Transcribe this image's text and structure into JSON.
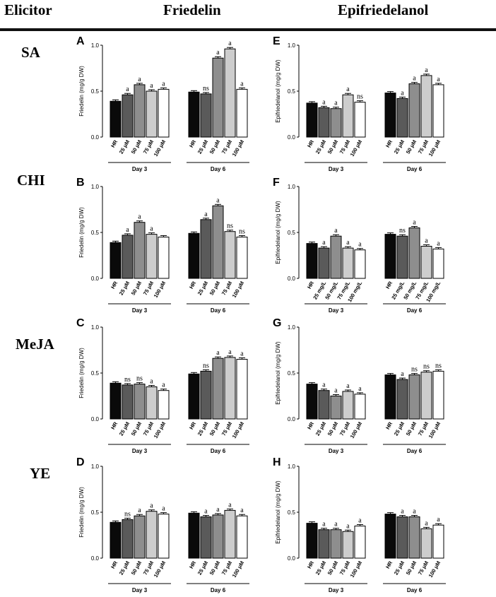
{
  "headers": {
    "elicitor": "Elicitor",
    "friedelin": "Friedelin",
    "epifriedelanol": "Epifriedelanol"
  },
  "row_labels": [
    "SA",
    "CHI",
    "MeJA",
    "YE"
  ],
  "colors": {
    "bars": [
      "#0a0a0a",
      "#5a5a5a",
      "#8e8e8e",
      "#cdcdcd",
      "#ffffff"
    ],
    "axis": "#000000"
  },
  "chart_data": [
    {
      "id": "A",
      "type": "bar",
      "ylabel": "Friedelin (mg/g DW)",
      "ylim": [
        0,
        1.0
      ],
      "yticks": [
        "0.0",
        "0.5",
        "1.0"
      ],
      "categories": [
        "HR",
        "25 μM",
        "50 μM",
        "75 μM",
        "100 μM"
      ],
      "groups": [
        "Day 3",
        "Day 6"
      ],
      "series": [
        {
          "name": "Day 3",
          "values": [
            0.39,
            0.46,
            0.57,
            0.5,
            0.52
          ],
          "labels": [
            "",
            "a",
            "a",
            "a",
            "a"
          ]
        },
        {
          "name": "Day 6",
          "values": [
            0.49,
            0.47,
            0.86,
            0.96,
            0.52
          ],
          "labels": [
            "",
            "ns",
            "a",
            "a",
            "a"
          ]
        }
      ]
    },
    {
      "id": "E",
      "type": "bar",
      "ylabel": "Epifriedelanol (mg/g DW)",
      "ylim": [
        0,
        1.0
      ],
      "yticks": [
        "0.0",
        "0.5",
        "1.0"
      ],
      "categories": [
        "HR",
        "25 μM",
        "50 μM",
        "75 μM",
        "100 μM"
      ],
      "groups": [
        "Day 3",
        "Day 6"
      ],
      "series": [
        {
          "name": "Day 3",
          "values": [
            0.37,
            0.32,
            0.31,
            0.46,
            0.38
          ],
          "labels": [
            "",
            "a",
            "a",
            "a",
            "ns"
          ]
        },
        {
          "name": "Day 6",
          "values": [
            0.48,
            0.42,
            0.58,
            0.67,
            0.57
          ],
          "labels": [
            "",
            "a",
            "a",
            "a",
            "a"
          ]
        }
      ]
    },
    {
      "id": "B",
      "type": "bar",
      "ylabel": "Friedelin (mg/g DW)",
      "ylim": [
        0,
        1.0
      ],
      "yticks": [
        "0.0",
        "0.5",
        "1.0"
      ],
      "categories": [
        "HR",
        "25 μM",
        "50 μM",
        "75 μM",
        "100 μM"
      ],
      "groups": [
        "Day 3",
        "Day 6"
      ],
      "series": [
        {
          "name": "Day 3",
          "values": [
            0.39,
            0.47,
            0.61,
            0.48,
            0.45
          ],
          "labels": [
            "",
            "a",
            "a",
            "a",
            ""
          ]
        },
        {
          "name": "Day 6",
          "values": [
            0.49,
            0.64,
            0.79,
            0.51,
            0.45
          ],
          "labels": [
            "",
            "a",
            "a",
            "ns",
            "ns"
          ]
        }
      ]
    },
    {
      "id": "F",
      "type": "bar",
      "ylabel": "Epifriedelanol (mg/g DW)",
      "ylim": [
        0,
        1.0
      ],
      "yticks": [
        "0.0",
        "0.5",
        "1.0"
      ],
      "categories": [
        "HR",
        "25 mg/L",
        "50 mg/L",
        "75 mg/L",
        "100 mg/L"
      ],
      "groups": [
        "Day 3",
        "Day 6"
      ],
      "series": [
        {
          "name": "Day 3",
          "values": [
            0.38,
            0.33,
            0.46,
            0.33,
            0.31
          ],
          "labels": [
            "",
            "a",
            "a",
            "a",
            "a"
          ]
        },
        {
          "name": "Day 6",
          "values": [
            0.48,
            0.46,
            0.55,
            0.35,
            0.32
          ],
          "labels": [
            "",
            "ns",
            "a",
            "a",
            "a"
          ]
        }
      ]
    },
    {
      "id": "C",
      "type": "bar",
      "ylabel": "Friedelin (mg/g DW)",
      "ylim": [
        0,
        1.0
      ],
      "yticks": [
        "0.0",
        "0.5",
        "1.0"
      ],
      "categories": [
        "HR",
        "25 μM",
        "50 μM",
        "75 μM",
        "100 μM"
      ],
      "groups": [
        "Day 3",
        "Day 6"
      ],
      "series": [
        {
          "name": "Day 3",
          "values": [
            0.39,
            0.37,
            0.38,
            0.35,
            0.31
          ],
          "labels": [
            "",
            "ns",
            "ns",
            "a",
            "a"
          ]
        },
        {
          "name": "Day 6",
          "values": [
            0.49,
            0.52,
            0.66,
            0.67,
            0.65
          ],
          "labels": [
            "",
            "ns",
            "a",
            "a",
            "a"
          ]
        }
      ]
    },
    {
      "id": "G",
      "type": "bar",
      "ylabel": "Epifriedelanol (mg/g DW)",
      "ylim": [
        0,
        1.0
      ],
      "yticks": [
        "0.0",
        "0.5",
        "1.0"
      ],
      "categories": [
        "HR",
        "25 μM",
        "50 μM",
        "75 μM",
        "100 μM"
      ],
      "groups": [
        "Day 3",
        "Day 6"
      ],
      "series": [
        {
          "name": "Day 3",
          "values": [
            0.38,
            0.31,
            0.25,
            0.3,
            0.27
          ],
          "labels": [
            "",
            "a",
            "a",
            "a",
            "a"
          ]
        },
        {
          "name": "Day 6",
          "values": [
            0.48,
            0.43,
            0.48,
            0.51,
            0.52
          ],
          "labels": [
            "",
            "a",
            "ns",
            "ns",
            "ns"
          ]
        }
      ]
    },
    {
      "id": "D",
      "type": "bar",
      "ylabel": "Friedelin (mg/g DW)",
      "ylim": [
        0,
        1.0
      ],
      "yticks": [
        "0.0",
        "0.5",
        "1.0"
      ],
      "categories": [
        "HR",
        "25 μM",
        "50 μM",
        "75 μM",
        "100 μM"
      ],
      "groups": [
        "Day 3",
        "Day 6"
      ],
      "series": [
        {
          "name": "Day 3",
          "values": [
            0.39,
            0.42,
            0.46,
            0.51,
            0.48
          ],
          "labels": [
            "",
            "ns",
            "a",
            "a",
            "a"
          ]
        },
        {
          "name": "Day 6",
          "values": [
            0.49,
            0.45,
            0.47,
            0.52,
            0.46
          ],
          "labels": [
            "",
            "a",
            "a",
            "a",
            "a"
          ]
        }
      ]
    },
    {
      "id": "H",
      "type": "bar",
      "ylabel": "Epifriedelanol (mg/g DW)",
      "ylim": [
        0,
        1.0
      ],
      "yticks": [
        "0.0",
        "0.5",
        "1.0"
      ],
      "categories": [
        "HR",
        "25 μM",
        "50 μM",
        "75 μM",
        "100 μM"
      ],
      "groups": [
        "Day 3",
        "Day 6"
      ],
      "series": [
        {
          "name": "Day 3",
          "values": [
            0.38,
            0.31,
            0.31,
            0.29,
            0.35
          ],
          "labels": [
            "",
            "a",
            "a",
            "a",
            "a"
          ]
        },
        {
          "name": "Day 6",
          "values": [
            0.48,
            0.45,
            0.45,
            0.32,
            0.36
          ],
          "labels": [
            "",
            "a",
            "a",
            "a",
            "a"
          ]
        }
      ]
    }
  ]
}
